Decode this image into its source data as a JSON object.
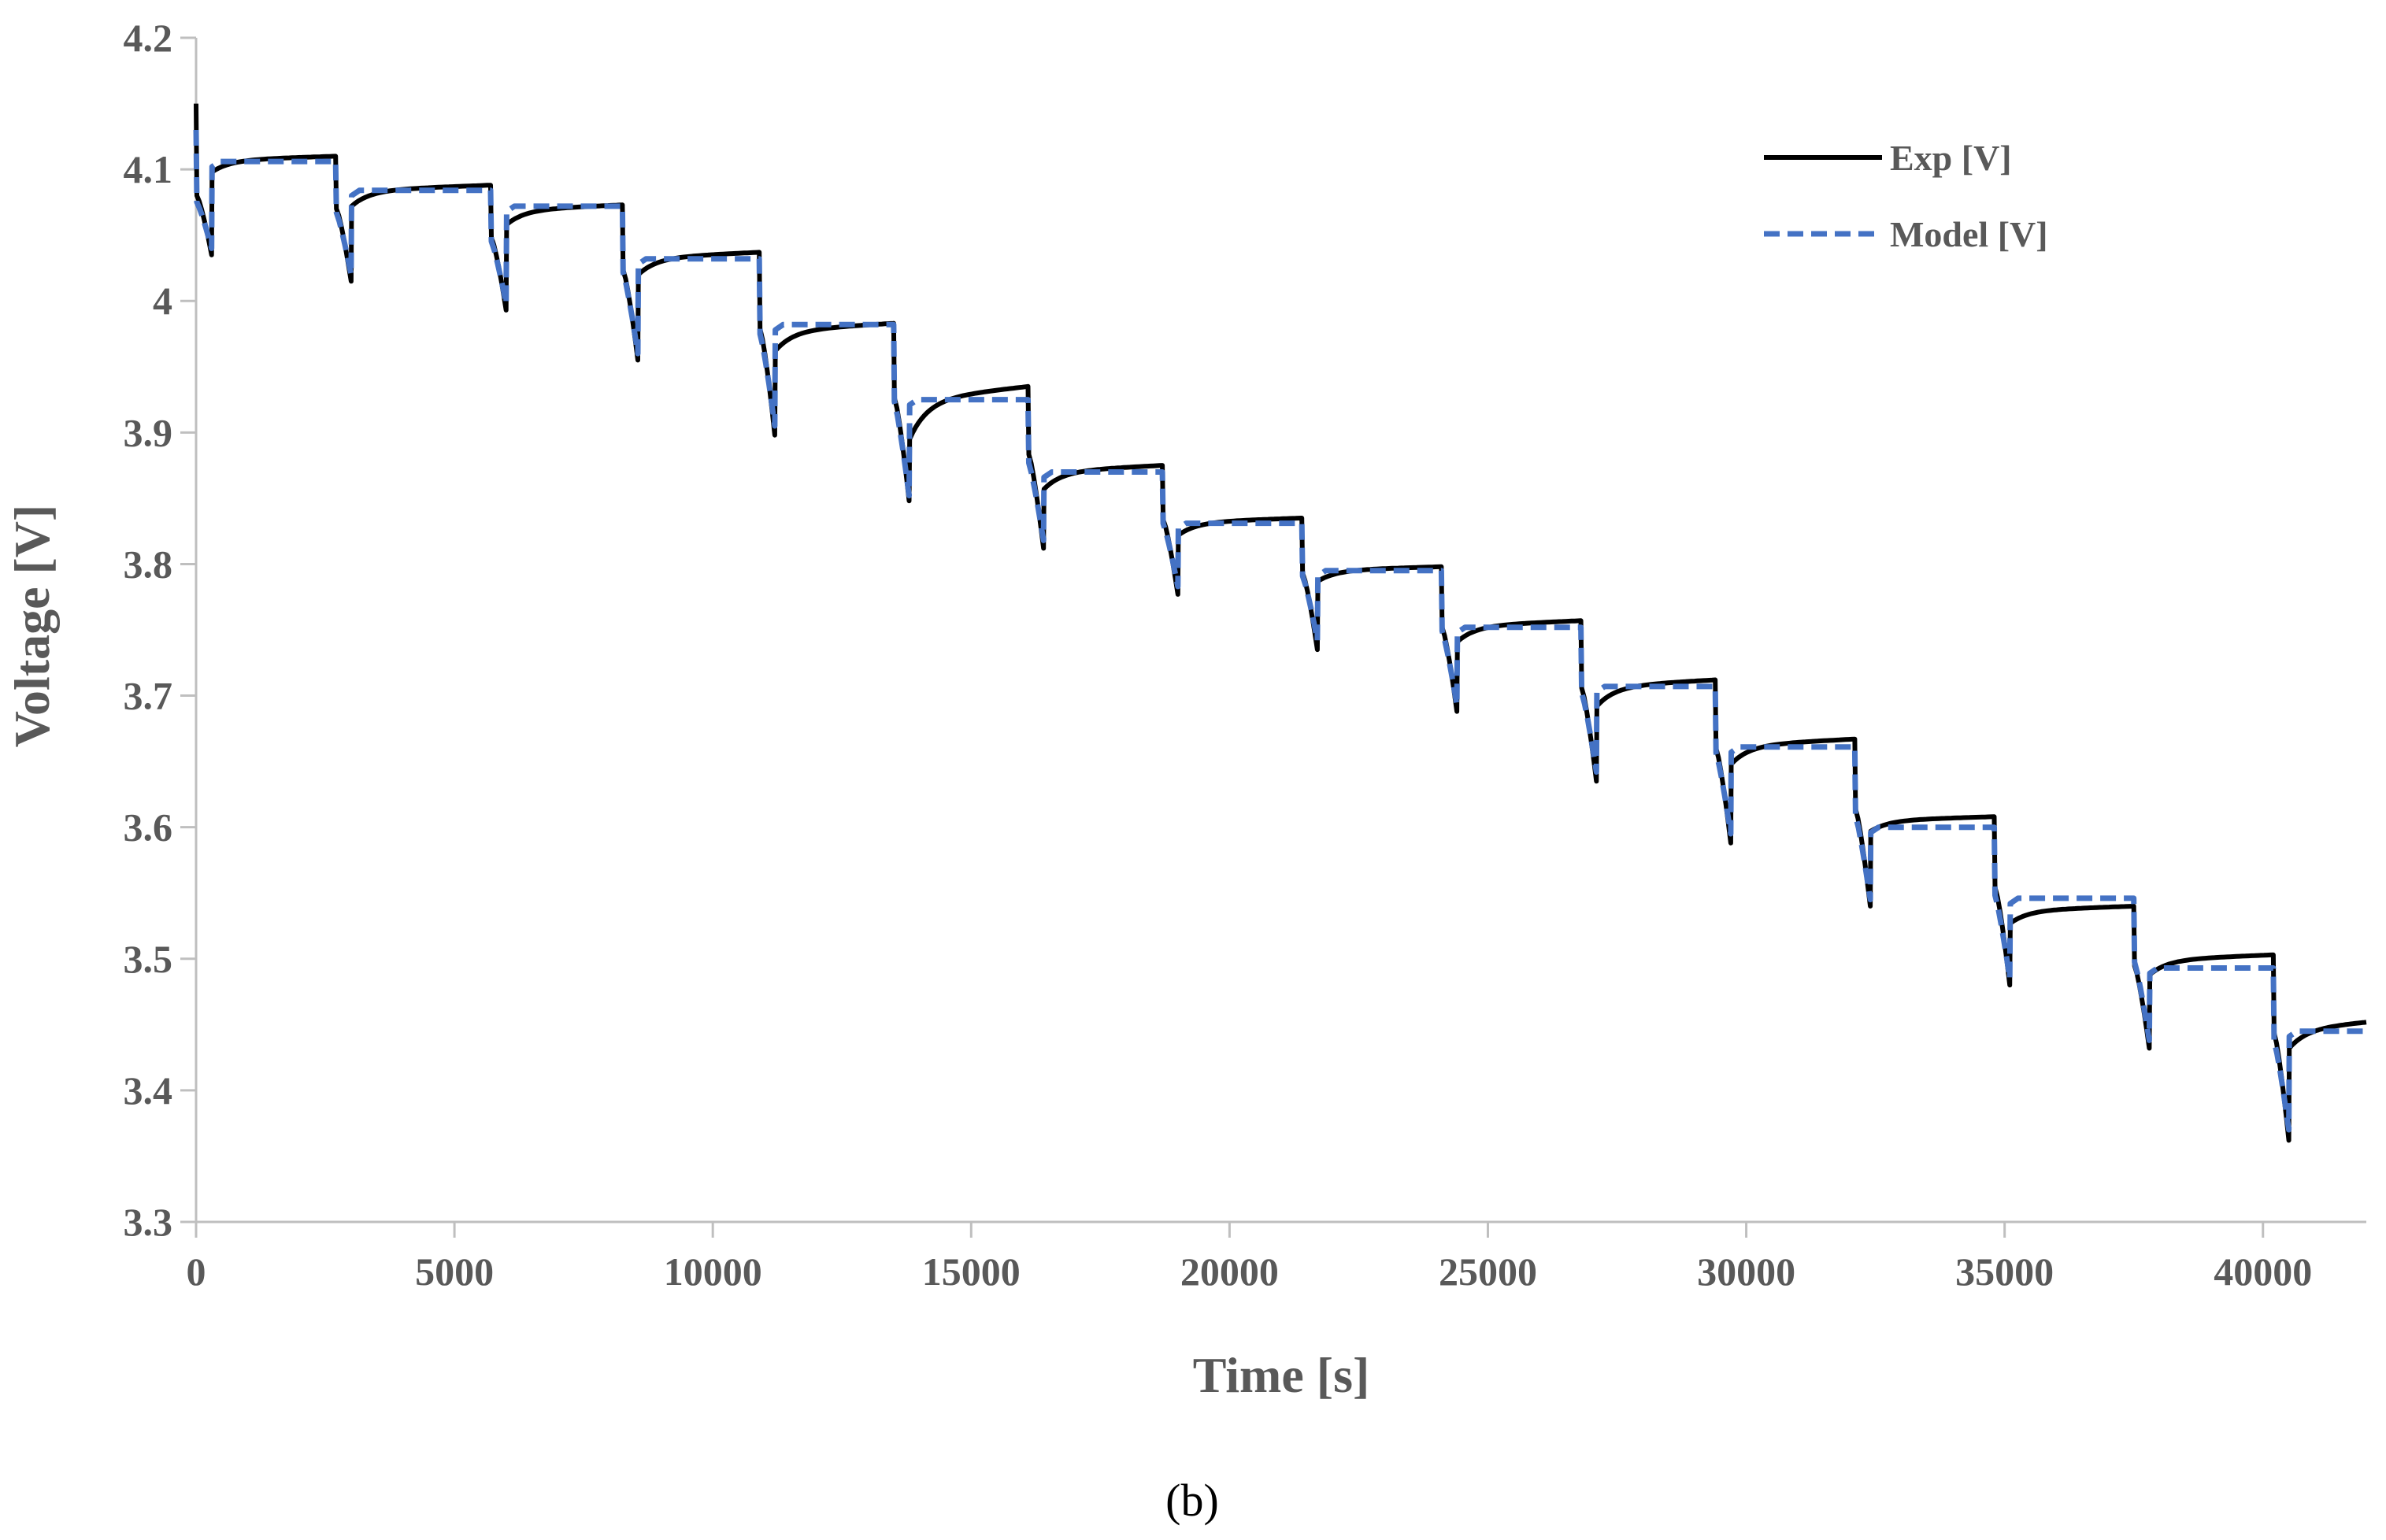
{
  "chart_data": {
    "type": "line",
    "title": "",
    "xlabel": "Time  [s]",
    "ylabel": "Voltage [V]",
    "xlim": [
      0,
      42000
    ],
    "ylim": [
      3.3,
      4.2
    ],
    "x_ticks": [
      0,
      5000,
      10000,
      15000,
      20000,
      25000,
      30000,
      35000,
      40000
    ],
    "y_ticks": [
      3.3,
      3.4,
      3.5,
      3.6,
      3.7,
      3.8,
      3.9,
      4.0,
      4.1,
      4.2
    ],
    "x_tick_labels": [
      "0",
      "5000",
      "10000",
      "15000",
      "20000",
      "25000",
      "30000",
      "35000",
      "40000"
    ],
    "y_tick_labels": [
      "3.3",
      "3.4",
      "3.5",
      "3.6",
      "3.7",
      "3.8",
      "3.9",
      "4",
      "4.1",
      "4.2"
    ],
    "grid": false,
    "legend_position": "top-right",
    "caption": "(b)",
    "pulse": {
      "start_times": [
        0,
        2700,
        5700,
        8250,
        10900,
        13500,
        16100,
        18700,
        21400,
        24100,
        26800,
        29400,
        32100,
        34800,
        37500,
        40200
      ],
      "duration_s": 300
    },
    "series": [
      {
        "name": "Exp [V]",
        "color": "#000000",
        "style": "solid",
        "start_voltage": 4.15,
        "pulse_min": [
          4.035,
          4.015,
          3.993,
          3.955,
          3.898,
          3.848,
          3.812,
          3.777,
          3.735,
          3.688,
          3.635,
          3.588,
          3.54,
          3.48,
          3.432,
          3.362
        ],
        "rest_start": [
          4.098,
          4.072,
          4.058,
          4.02,
          3.962,
          3.895,
          3.857,
          3.822,
          3.787,
          3.741,
          3.692,
          3.648,
          3.597,
          3.527,
          3.488,
          3.432
        ],
        "rest_end": [
          4.11,
          4.088,
          4.073,
          4.037,
          3.983,
          3.935,
          3.875,
          3.835,
          3.798,
          3.757,
          3.712,
          3.667,
          3.608,
          3.54,
          3.503,
          3.452
        ]
      },
      {
        "name": "Model [V]",
        "color": "#4472C4",
        "style": "dashed",
        "start_voltage": 4.13,
        "pulse_min": [
          4.04,
          4.02,
          3.998,
          3.96,
          3.905,
          3.852,
          3.818,
          3.783,
          3.742,
          3.693,
          3.642,
          3.595,
          3.545,
          3.485,
          3.438,
          3.37
        ],
        "level": [
          4.106,
          4.084,
          4.072,
          4.032,
          3.982,
          3.925,
          3.87,
          3.831,
          3.795,
          3.752,
          3.707,
          3.661,
          3.6,
          3.546,
          3.493,
          3.445
        ]
      }
    ]
  }
}
